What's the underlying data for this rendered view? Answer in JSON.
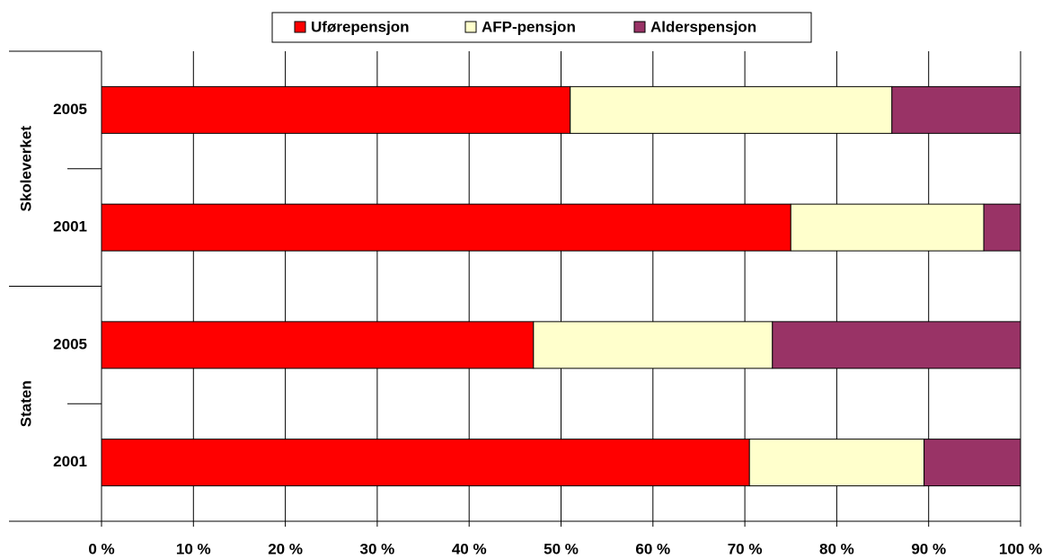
{
  "chart_data": {
    "type": "stacked_barh",
    "groups": [
      {
        "name": "Skoleverket",
        "categories": [
          "2005",
          "2001"
        ]
      },
      {
        "name": "Staten",
        "categories": [
          "2005",
          "2001"
        ]
      }
    ],
    "series": [
      {
        "name": "Uførepensjon",
        "color": "#ff0000",
        "values": [
          51,
          75,
          47,
          70.5
        ]
      },
      {
        "name": "AFP-pensjon",
        "color": "#ffffcc",
        "values": [
          35,
          21,
          26,
          19
        ]
      },
      {
        "name": "Alderspensjon",
        "color": "#993366",
        "values": [
          14,
          4,
          27,
          10.5
        ]
      }
    ],
    "xlim": [
      0,
      100
    ],
    "xticks": [
      {
        "value": 0,
        "label": "0 %"
      },
      {
        "value": 10,
        "label": "10 %"
      },
      {
        "value": 20,
        "label": "20 %"
      },
      {
        "value": 30,
        "label": "30 %"
      },
      {
        "value": 40,
        "label": "40 %"
      },
      {
        "value": 50,
        "label": "50 %"
      },
      {
        "value": 60,
        "label": "60 %"
      },
      {
        "value": 70,
        "label": "70 %"
      },
      {
        "value": 80,
        "label": "80 %"
      },
      {
        "value": 90,
        "label": "90 %"
      },
      {
        "value": 100,
        "label": "100 %"
      }
    ],
    "grid": true,
    "legend": "top"
  }
}
